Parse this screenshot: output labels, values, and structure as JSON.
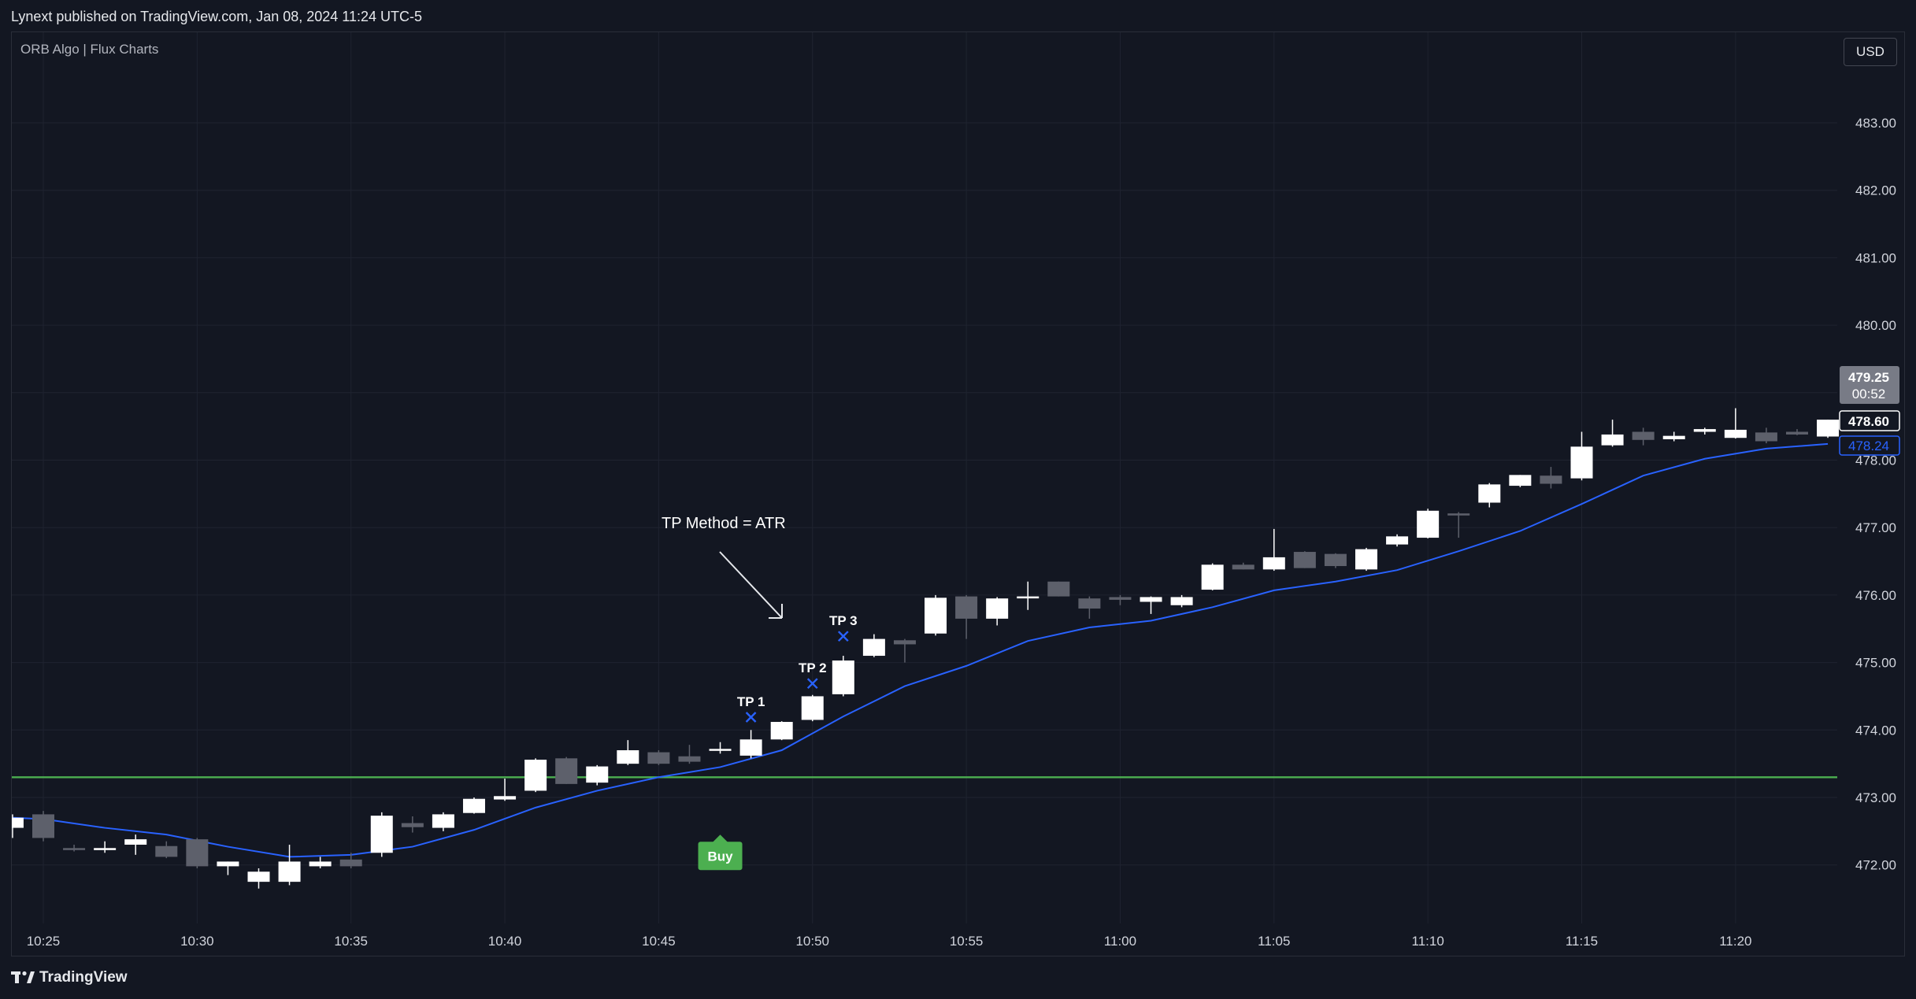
{
  "header": {
    "published_text": "Lynext published on TradingView.com, Jan 08, 2024 11:24 UTC-5"
  },
  "chart_header": {
    "indicator_label": "ORB Algo | Flux Charts",
    "currency_button": "USD"
  },
  "footer": {
    "brand": "TradingView",
    "logo_icon": "tradingview-logo-icon"
  },
  "colors": {
    "background": "#131722",
    "grid": "#1f2330",
    "up_candle": "#ffffff",
    "down_candle": "#5d606b",
    "ema_line": "#2962ff",
    "orb_level": "#4caf50",
    "buy_label": "#4caf50",
    "tp_marker": "#2962ff"
  },
  "chart_data": {
    "type": "candlestick",
    "instrument_interval": "1 minute",
    "x_tick_labels": [
      "10:25",
      "10:30",
      "10:35",
      "10:40",
      "10:45",
      "10:50",
      "10:55",
      "11:00",
      "11:05",
      "11:10",
      "11:15",
      "11:20"
    ],
    "x_tick_first_minute": 0,
    "x_tick_step_minutes": 5,
    "y_tick_labels": [
      "472.00",
      "473.00",
      "474.00",
      "475.00",
      "476.00",
      "477.00",
      "478.00",
      "479.00",
      "480.00",
      "481.00",
      "482.00",
      "483.00"
    ],
    "ylim": [
      471.15,
      484.0
    ],
    "grid": true,
    "candles": [
      {
        "t": -1,
        "o": 472.55,
        "h": 472.75,
        "l": 472.4,
        "c": 472.7
      },
      {
        "t": 0,
        "o": 472.75,
        "h": 472.8,
        "l": 472.35,
        "c": 472.4
      },
      {
        "t": 1,
        "o": 472.25,
        "h": 472.3,
        "l": 472.2,
        "c": 472.22
      },
      {
        "t": 2,
        "o": 472.22,
        "h": 472.35,
        "l": 472.18,
        "c": 472.25
      },
      {
        "t": 3,
        "o": 472.3,
        "h": 472.45,
        "l": 472.15,
        "c": 472.38
      },
      {
        "t": 4,
        "o": 472.28,
        "h": 472.35,
        "l": 472.1,
        "c": 472.12
      },
      {
        "t": 5,
        "o": 472.38,
        "h": 472.4,
        "l": 471.95,
        "c": 471.98
      },
      {
        "t": 6,
        "o": 471.98,
        "h": 472.05,
        "l": 471.85,
        "c": 472.05
      },
      {
        "t": 7,
        "o": 471.75,
        "h": 471.95,
        "l": 471.65,
        "c": 471.9
      },
      {
        "t": 8,
        "o": 471.75,
        "h": 472.3,
        "l": 471.7,
        "c": 472.05
      },
      {
        "t": 9,
        "o": 471.98,
        "h": 472.12,
        "l": 471.95,
        "c": 472.05
      },
      {
        "t": 10,
        "o": 472.08,
        "h": 472.18,
        "l": 471.95,
        "c": 471.98
      },
      {
        "t": 11,
        "o": 472.18,
        "h": 472.78,
        "l": 472.12,
        "c": 472.73
      },
      {
        "t": 12,
        "o": 472.62,
        "h": 472.72,
        "l": 472.48,
        "c": 472.56
      },
      {
        "t": 13,
        "o": 472.55,
        "h": 472.78,
        "l": 472.5,
        "c": 472.75
      },
      {
        "t": 14,
        "o": 472.77,
        "h": 473.0,
        "l": 472.76,
        "c": 472.98
      },
      {
        "t": 15,
        "o": 472.97,
        "h": 473.28,
        "l": 472.95,
        "c": 473.02
      },
      {
        "t": 16,
        "o": 473.1,
        "h": 473.58,
        "l": 473.08,
        "c": 473.56
      },
      {
        "t": 17,
        "o": 473.58,
        "h": 473.6,
        "l": 473.2,
        "c": 473.2
      },
      {
        "t": 18,
        "o": 473.22,
        "h": 473.48,
        "l": 473.18,
        "c": 473.46
      },
      {
        "t": 19,
        "o": 473.5,
        "h": 473.85,
        "l": 473.48,
        "c": 473.7
      },
      {
        "t": 20,
        "o": 473.67,
        "h": 473.7,
        "l": 473.48,
        "c": 473.5
      },
      {
        "t": 21,
        "o": 473.61,
        "h": 473.78,
        "l": 473.5,
        "c": 473.53
      },
      {
        "t": 22,
        "o": 473.7,
        "h": 473.82,
        "l": 473.65,
        "c": 473.72
      },
      {
        "t": 23,
        "o": 473.62,
        "h": 474.0,
        "l": 473.58,
        "c": 473.86
      },
      {
        "t": 24,
        "o": 473.86,
        "h": 474.13,
        "l": 473.85,
        "c": 474.12
      },
      {
        "t": 25,
        "o": 474.15,
        "h": 474.52,
        "l": 474.13,
        "c": 474.5
      },
      {
        "t": 26,
        "o": 474.53,
        "h": 475.1,
        "l": 474.5,
        "c": 475.03
      },
      {
        "t": 27,
        "o": 475.1,
        "h": 475.42,
        "l": 475.08,
        "c": 475.35
      },
      {
        "t": 28,
        "o": 475.33,
        "h": 475.35,
        "l": 475.0,
        "c": 475.27
      },
      {
        "t": 29,
        "o": 475.43,
        "h": 476.0,
        "l": 475.4,
        "c": 475.96
      },
      {
        "t": 30,
        "o": 475.98,
        "h": 476.0,
        "l": 475.35,
        "c": 475.65
      },
      {
        "t": 31,
        "o": 475.65,
        "h": 475.97,
        "l": 475.55,
        "c": 475.95
      },
      {
        "t": 32,
        "o": 475.96,
        "h": 476.2,
        "l": 475.78,
        "c": 475.98
      },
      {
        "t": 33,
        "o": 476.2,
        "h": 476.2,
        "l": 475.98,
        "c": 475.98
      },
      {
        "t": 34,
        "o": 475.95,
        "h": 475.98,
        "l": 475.65,
        "c": 475.8
      },
      {
        "t": 35,
        "o": 475.97,
        "h": 476.0,
        "l": 475.85,
        "c": 475.93
      },
      {
        "t": 36,
        "o": 475.9,
        "h": 475.98,
        "l": 475.72,
        "c": 475.97
      },
      {
        "t": 37,
        "o": 475.85,
        "h": 476.0,
        "l": 475.82,
        "c": 475.97
      },
      {
        "t": 38,
        "o": 476.08,
        "h": 476.47,
        "l": 476.07,
        "c": 476.45
      },
      {
        "t": 39,
        "o": 476.45,
        "h": 476.48,
        "l": 476.38,
        "c": 476.38
      },
      {
        "t": 40,
        "o": 476.38,
        "h": 476.98,
        "l": 476.36,
        "c": 476.56
      },
      {
        "t": 41,
        "o": 476.64,
        "h": 476.65,
        "l": 476.4,
        "c": 476.4
      },
      {
        "t": 42,
        "o": 476.61,
        "h": 476.62,
        "l": 476.4,
        "c": 476.43
      },
      {
        "t": 43,
        "o": 476.38,
        "h": 476.7,
        "l": 476.36,
        "c": 476.68
      },
      {
        "t": 44,
        "o": 476.75,
        "h": 476.9,
        "l": 476.72,
        "c": 476.87
      },
      {
        "t": 45,
        "o": 476.85,
        "h": 477.28,
        "l": 476.84,
        "c": 477.25
      },
      {
        "t": 46,
        "o": 477.21,
        "h": 477.23,
        "l": 476.85,
        "c": 477.18
      },
      {
        "t": 47,
        "o": 477.37,
        "h": 477.66,
        "l": 477.3,
        "c": 477.64
      },
      {
        "t": 48,
        "o": 477.62,
        "h": 477.78,
        "l": 477.6,
        "c": 477.78
      },
      {
        "t": 49,
        "o": 477.77,
        "h": 477.9,
        "l": 477.58,
        "c": 477.65
      },
      {
        "t": 50,
        "o": 477.73,
        "h": 478.42,
        "l": 477.7,
        "c": 478.2
      },
      {
        "t": 51,
        "o": 478.22,
        "h": 478.6,
        "l": 478.2,
        "c": 478.38
      },
      {
        "t": 52,
        "o": 478.42,
        "h": 478.48,
        "l": 478.22,
        "c": 478.3
      },
      {
        "t": 53,
        "o": 478.31,
        "h": 478.42,
        "l": 478.28,
        "c": 478.36
      },
      {
        "t": 54,
        "o": 478.42,
        "h": 478.48,
        "l": 478.38,
        "c": 478.46
      },
      {
        "t": 55,
        "o": 478.33,
        "h": 478.77,
        "l": 478.32,
        "c": 478.45
      },
      {
        "t": 56,
        "o": 478.41,
        "h": 478.48,
        "l": 478.25,
        "c": 478.28
      },
      {
        "t": 57,
        "o": 478.42,
        "h": 478.46,
        "l": 478.37,
        "c": 478.38
      },
      {
        "t": 58,
        "o": 478.35,
        "h": 478.6,
        "l": 478.33,
        "c": 478.6
      }
    ],
    "ema_series": {
      "t": [
        -1,
        0,
        2,
        4,
        6,
        8,
        10,
        12,
        14,
        16,
        18,
        20,
        22,
        24,
        26,
        28,
        30,
        32,
        34,
        36,
        38,
        40,
        42,
        44,
        46,
        48,
        50,
        52,
        54,
        56,
        58
      ],
      "values": [
        472.7,
        472.68,
        472.55,
        472.45,
        472.27,
        472.12,
        472.15,
        472.27,
        472.52,
        472.85,
        473.1,
        473.3,
        473.45,
        473.7,
        474.2,
        474.65,
        474.95,
        475.32,
        475.52,
        475.62,
        475.82,
        476.07,
        476.2,
        476.37,
        476.65,
        476.95,
        477.35,
        477.77,
        478.02,
        478.17,
        478.24
      ]
    },
    "orb_level": 473.3,
    "price_badges": [
      {
        "value": "479.25",
        "sub": "00:52",
        "style": "grey"
      },
      {
        "value": "478.60",
        "style": "white"
      },
      {
        "value": "478.24",
        "style": "blue"
      }
    ],
    "tp_markers": [
      {
        "label": "TP 1",
        "t": 23,
        "price": 474.19
      },
      {
        "label": "TP 2",
        "t": 25,
        "price": 474.69
      },
      {
        "label": "TP 3",
        "t": 26,
        "price": 475.39
      }
    ],
    "buy_signal": {
      "label": "Buy",
      "t": 22
    },
    "annotation": {
      "text": "TP Method = ATR"
    }
  }
}
